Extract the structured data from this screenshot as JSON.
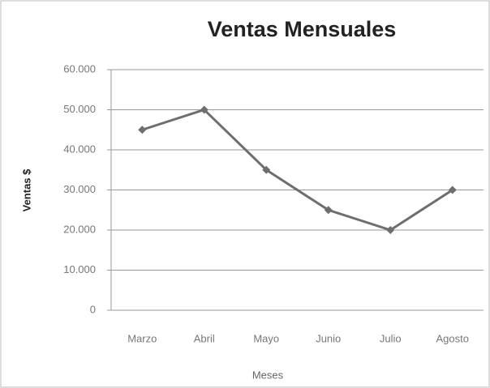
{
  "chart_data": {
    "type": "line",
    "title": "Ventas Mensuales",
    "x_label": "Meses",
    "y_label": "Ventas $",
    "categories": [
      "Marzo",
      "Abril",
      "Mayo",
      "Junio",
      "Julio",
      "Agosto"
    ],
    "series": [
      {
        "name": "Ventas",
        "color": "#6e6e6e",
        "values": [
          45000,
          50000,
          35000,
          25000,
          20000,
          30000
        ]
      }
    ],
    "ylim": [
      0,
      60000
    ],
    "yticks": [
      0,
      {
        "value": 10000,
        "label": "10.000"
      },
      {
        "value": 20000,
        "label": "20.000"
      },
      {
        "value": 30000,
        "label": "30.000"
      },
      {
        "value": 40000,
        "label": "40.000"
      },
      {
        "value": 50000,
        "label": "50.000"
      },
      {
        "value": 60000,
        "label": "60.000"
      }
    ],
    "grid": true
  }
}
